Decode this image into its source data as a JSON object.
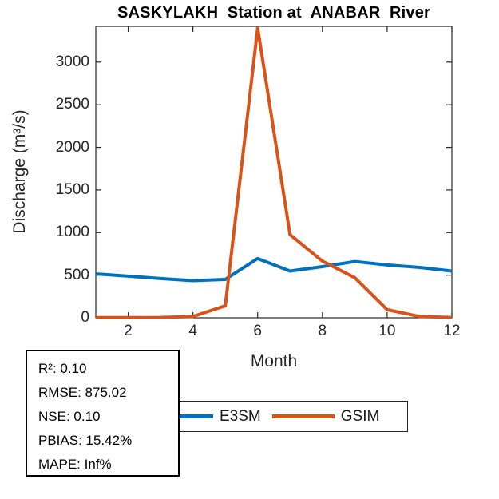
{
  "chart_data": {
    "type": "line",
    "title": "SASKYLAKH  Station at  ANABAR  River",
    "xlabel": "Month",
    "ylabel": "Discharge (m³/s)",
    "x": [
      1,
      2,
      3,
      4,
      5,
      6,
      7,
      8,
      9,
      10,
      11,
      12
    ],
    "series": [
      {
        "name": "E3SM",
        "color": "#0072BD",
        "values": [
          515,
          488,
          460,
          436,
          450,
          695,
          548,
          600,
          660,
          620,
          590,
          548
        ]
      },
      {
        "name": "GSIM",
        "color": "#D95319",
        "values": [
          2,
          2,
          3,
          15,
          140,
          3400,
          975,
          665,
          470,
          95,
          15,
          3
        ]
      }
    ],
    "xlim": [
      1,
      12
    ],
    "ylim": [
      0,
      3420
    ],
    "xticks": [
      2,
      4,
      6,
      8,
      10,
      12
    ],
    "yticks": [
      0,
      500,
      1000,
      1500,
      2000,
      2500,
      3000
    ],
    "grid": false,
    "legend_position": "below-axis"
  },
  "stats_box": {
    "lines": [
      "R²: 0.10",
      "RMSE: 875.02",
      "NSE: 0.10",
      "PBIAS: 15.42%",
      "MAPE: Inf%"
    ]
  },
  "colors": {
    "axis": "#262626",
    "e3sm": "#0072BD",
    "gsim": "#D95319"
  }
}
